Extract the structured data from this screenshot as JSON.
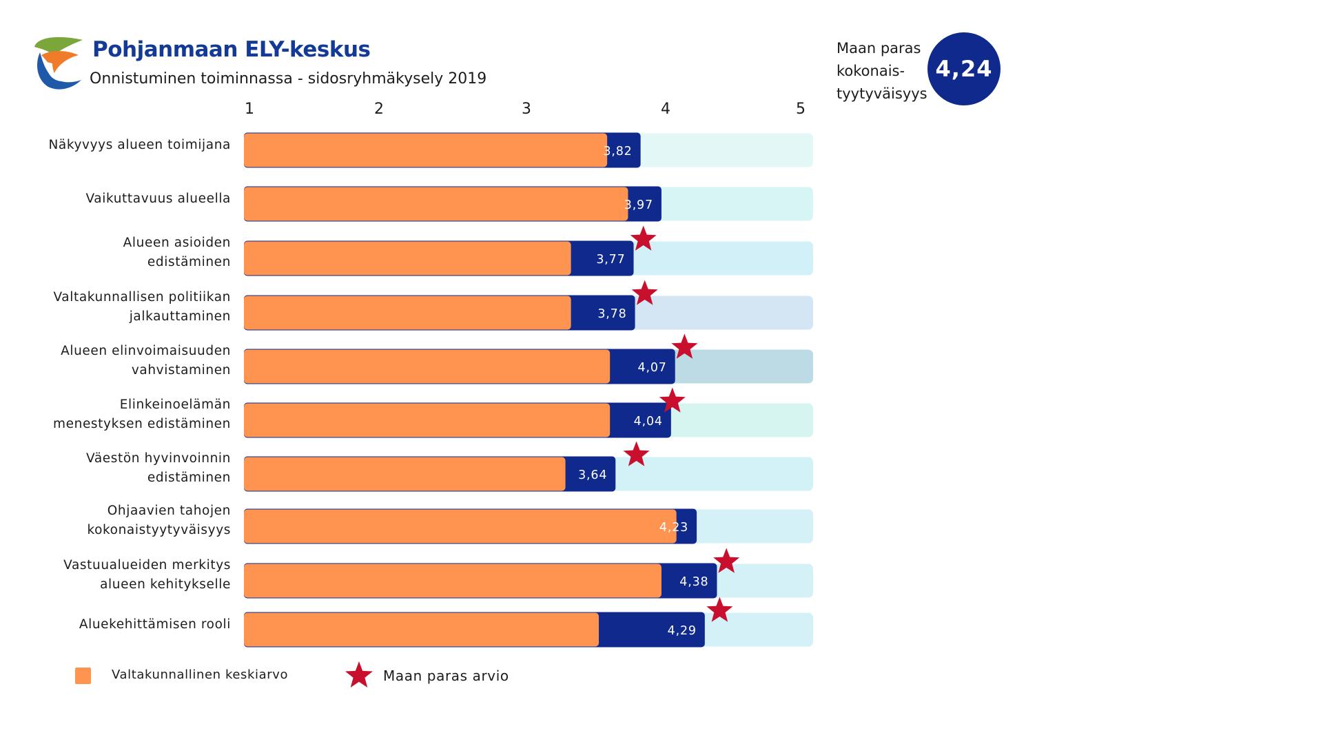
{
  "header": {
    "title": "Pohjanmaan ELY-keskus",
    "subtitle": "Onnistuminen toiminnassa - sidosryhmäkysely 2019"
  },
  "best_overall": {
    "label_lines": [
      "Maan paras",
      "kokonais-",
      "tyytyväisyys"
    ],
    "value": "4,24"
  },
  "legend": {
    "national_average": "Valtakunnallinen keskiarvo",
    "best_in_country": "Maan paras arvio"
  },
  "colors": {
    "national_average": "#ff9450",
    "region_value": "#0f2a8c",
    "best_star": "#c8102e"
  },
  "chart_data": {
    "type": "bar",
    "orientation": "horizontal",
    "xlim": [
      1,
      5
    ],
    "ticks": [
      "1",
      "2",
      "3",
      "4",
      "5"
    ],
    "categories": [
      [
        "Näkyvyys alueen toimijana"
      ],
      [
        "Vaikuttavuus alueella"
      ],
      [
        "Alueen asioiden",
        "edistäminen"
      ],
      [
        "Valtakunnallisen politiikan",
        "jalkauttaminen"
      ],
      [
        "Alueen elinvoimaisuuden",
        "vahvistaminen"
      ],
      [
        "Elinkeinoelämän",
        "menestyksen edistäminen"
      ],
      [
        "Väestön hyvinvoinnin",
        "edistäminen"
      ],
      [
        "Ohjaavien tahojen",
        "kokonaistyytyväisyys"
      ],
      [
        "Vastuualueiden merkitys",
        "alueen kehitykselle"
      ],
      [
        "Aluekehittämisen rooli"
      ]
    ],
    "values": [
      3.82,
      3.97,
      3.77,
      3.78,
      4.07,
      4.04,
      3.64,
      4.23,
      4.38,
      4.29
    ],
    "value_labels": [
      "3,82",
      "3,97",
      "3,77",
      "3,78",
      "4,07",
      "4,04",
      "3,64",
      "4,23",
      "4,38",
      "4,29"
    ],
    "national_average": [
      3.58,
      3.73,
      3.32,
      3.32,
      3.6,
      3.6,
      3.28,
      4.08,
      3.97,
      3.52
    ],
    "best_in_country": [
      null,
      null,
      3.84,
      3.85,
      4.14,
      4.05,
      3.79,
      null,
      4.45,
      4.4
    ],
    "background_colors": [
      "#e3f8f6",
      "#d6f5f3",
      "#d2f0f8",
      "#d4e6f3",
      "#bddbe5",
      "#d6f5f1",
      "#d3f2f8",
      "#d4f1f8",
      "#d4f1f8",
      "#d4f1f8"
    ]
  }
}
